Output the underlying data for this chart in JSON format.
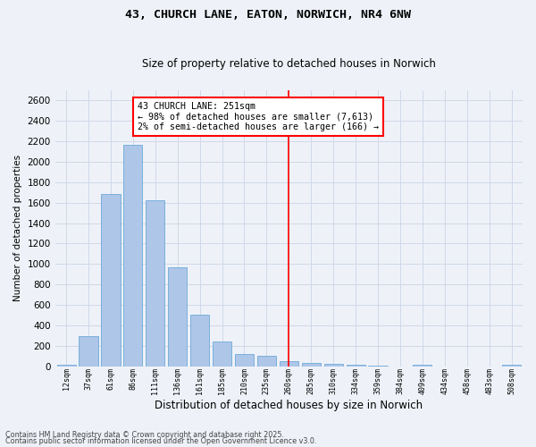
{
  "title": "43, CHURCH LANE, EATON, NORWICH, NR4 6NW",
  "subtitle": "Size of property relative to detached houses in Norwich",
  "xlabel": "Distribution of detached houses by size in Norwich",
  "ylabel": "Number of detached properties",
  "categories": [
    "12sqm",
    "37sqm",
    "61sqm",
    "86sqm",
    "111sqm",
    "136sqm",
    "161sqm",
    "185sqm",
    "210sqm",
    "235sqm",
    "260sqm",
    "285sqm",
    "310sqm",
    "334sqm",
    "359sqm",
    "384sqm",
    "409sqm",
    "434sqm",
    "458sqm",
    "483sqm",
    "508sqm"
  ],
  "values": [
    20,
    300,
    1680,
    2160,
    1620,
    970,
    505,
    248,
    120,
    105,
    50,
    35,
    25,
    18,
    5,
    0,
    18,
    0,
    0,
    0,
    18
  ],
  "bar_color": "#aec6e8",
  "bar_edge_color": "#5a9fd4",
  "vline_index": 10,
  "annotation_text": "43 CHURCH LANE: 251sqm\n← 98% of detached houses are smaller (7,613)\n2% of semi-detached houses are larger (166) →",
  "annotation_box_color": "#ffffff",
  "annotation_box_edgecolor": "red",
  "vline_color": "red",
  "ylim": [
    0,
    2700
  ],
  "yticks": [
    0,
    200,
    400,
    600,
    800,
    1000,
    1200,
    1400,
    1600,
    1800,
    2000,
    2200,
    2400,
    2600
  ],
  "grid_color": "#d0d8e8",
  "background_color": "#eef2f8",
  "footer1": "Contains HM Land Registry data © Crown copyright and database right 2025.",
  "footer2": "Contains public sector information licensed under the Open Government Licence v3.0."
}
